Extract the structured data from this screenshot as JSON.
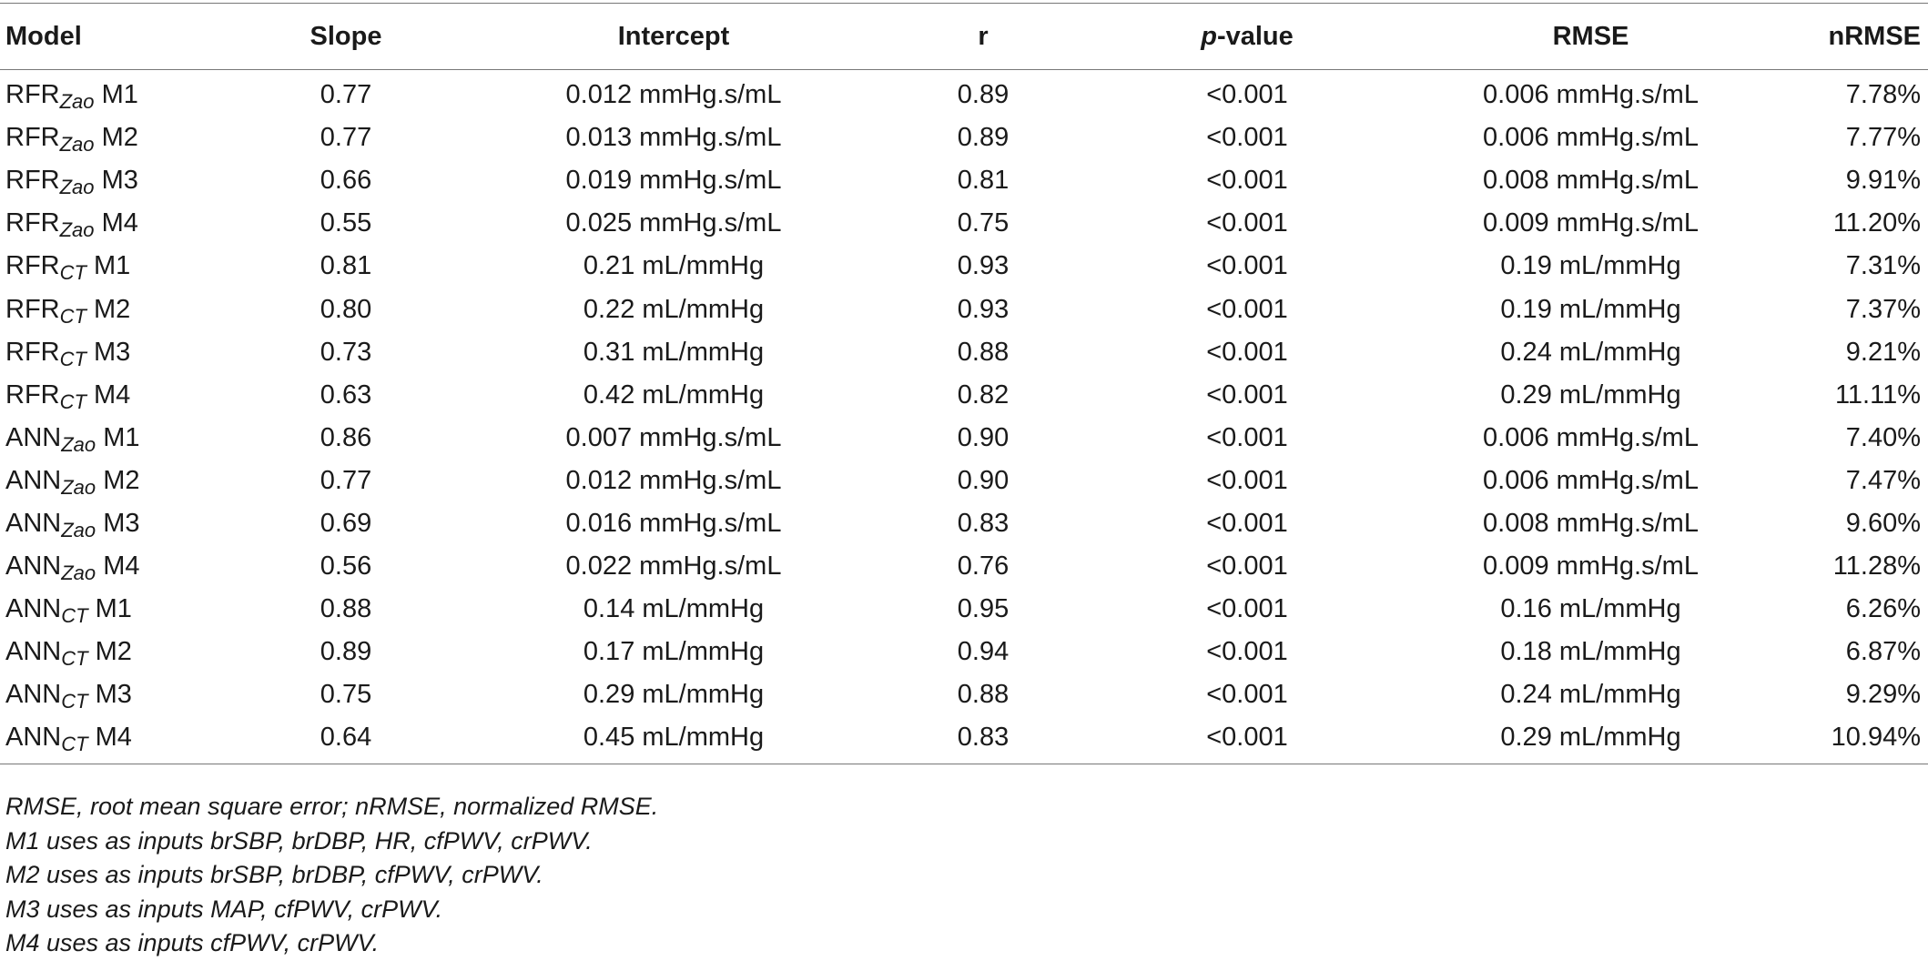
{
  "headers": {
    "model": "Model",
    "slope": "Slope",
    "intercept": "Intercept",
    "r": "r",
    "p_italic": "p",
    "p_rest": "-value",
    "rmse": "RMSE",
    "nrmse": "nRMSE"
  },
  "rows": [
    {
      "base": "RFR",
      "sub": "Zao",
      "m": "M1",
      "slope": "0.77",
      "intercept": "0.012 mmHg.s/mL",
      "r": "0.89",
      "p": "<0.001",
      "rmse": "0.006 mmHg.s/mL",
      "nrmse": "7.78%"
    },
    {
      "base": "RFR",
      "sub": "Zao",
      "m": "M2",
      "slope": "0.77",
      "intercept": "0.013 mmHg.s/mL",
      "r": "0.89",
      "p": "<0.001",
      "rmse": "0.006 mmHg.s/mL",
      "nrmse": "7.77%"
    },
    {
      "base": "RFR",
      "sub": "Zao",
      "m": "M3",
      "slope": "0.66",
      "intercept": "0.019 mmHg.s/mL",
      "r": "0.81",
      "p": "<0.001",
      "rmse": "0.008 mmHg.s/mL",
      "nrmse": "9.91%"
    },
    {
      "base": "RFR",
      "sub": "Zao",
      "m": "M4",
      "slope": "0.55",
      "intercept": "0.025 mmHg.s/mL",
      "r": "0.75",
      "p": "<0.001",
      "rmse": "0.009 mmHg.s/mL",
      "nrmse": "11.20%"
    },
    {
      "base": "RFR",
      "sub": "CT",
      "m": "M1",
      "slope": "0.81",
      "intercept": "0.21 mL/mmHg",
      "r": "0.93",
      "p": "<0.001",
      "rmse": "0.19 mL/mmHg",
      "nrmse": "7.31%"
    },
    {
      "base": "RFR",
      "sub": "CT",
      "m": "M2",
      "slope": "0.80",
      "intercept": "0.22 mL/mmHg",
      "r": "0.93",
      "p": "<0.001",
      "rmse": "0.19 mL/mmHg",
      "nrmse": "7.37%"
    },
    {
      "base": "RFR",
      "sub": "CT",
      "m": "M3",
      "slope": "0.73",
      "intercept": "0.31 mL/mmHg",
      "r": "0.88",
      "p": "<0.001",
      "rmse": "0.24 mL/mmHg",
      "nrmse": "9.21%"
    },
    {
      "base": "RFR",
      "sub": "CT",
      "m": "M4",
      "slope": "0.63",
      "intercept": "0.42 mL/mmHg",
      "r": "0.82",
      "p": "<0.001",
      "rmse": "0.29 mL/mmHg",
      "nrmse": "11.11%"
    },
    {
      "base": "ANN",
      "sub": "Zao",
      "m": "M1",
      "slope": "0.86",
      "intercept": "0.007 mmHg.s/mL",
      "r": "0.90",
      "p": "<0.001",
      "rmse": "0.006 mmHg.s/mL",
      "nrmse": "7.40%"
    },
    {
      "base": "ANN",
      "sub": "Zao",
      "m": "M2",
      "slope": "0.77",
      "intercept": "0.012 mmHg.s/mL",
      "r": "0.90",
      "p": "<0.001",
      "rmse": "0.006 mmHg.s/mL",
      "nrmse": "7.47%"
    },
    {
      "base": "ANN",
      "sub": "Zao",
      "m": "M3",
      "slope": "0.69",
      "intercept": "0.016 mmHg.s/mL",
      "r": "0.83",
      "p": "<0.001",
      "rmse": "0.008 mmHg.s/mL",
      "nrmse": "9.60%"
    },
    {
      "base": "ANN",
      "sub": "Zao",
      "m": "M4",
      "slope": "0.56",
      "intercept": "0.022 mmHg.s/mL",
      "r": "0.76",
      "p": "<0.001",
      "rmse": "0.009 mmHg.s/mL",
      "nrmse": "11.28%"
    },
    {
      "base": "ANN",
      "sub": "CT",
      "m": "M1",
      "slope": "0.88",
      "intercept": "0.14 mL/mmHg",
      "r": "0.95",
      "p": "<0.001",
      "rmse": "0.16 mL/mmHg",
      "nrmse": "6.26%"
    },
    {
      "base": "ANN",
      "sub": "CT",
      "m": "M2",
      "slope": "0.89",
      "intercept": "0.17 mL/mmHg",
      "r": "0.94",
      "p": "<0.001",
      "rmse": "0.18 mL/mmHg",
      "nrmse": "6.87%"
    },
    {
      "base": "ANN",
      "sub": "CT",
      "m": "M3",
      "slope": "0.75",
      "intercept": "0.29 mL/mmHg",
      "r": "0.88",
      "p": "<0.001",
      "rmse": "0.24 mL/mmHg",
      "nrmse": "9.29%"
    },
    {
      "base": "ANN",
      "sub": "CT",
      "m": "M4",
      "slope": "0.64",
      "intercept": "0.45 mL/mmHg",
      "r": "0.83",
      "p": "<0.001",
      "rmse": "0.29 mL/mmHg",
      "nrmse": "10.94%"
    }
  ],
  "notes": [
    "RMSE, root mean square error; nRMSE, normalized RMSE.",
    "M1 uses as inputs brSBP, brDBP, HR, cfPWV, crPWV.",
    "M2 uses as inputs brSBP, brDBP, cfPWV, crPWV.",
    "M3 uses as inputs MAP, cfPWV, crPWV.",
    "M4 uses as inputs cfPWV, crPWV."
  ]
}
